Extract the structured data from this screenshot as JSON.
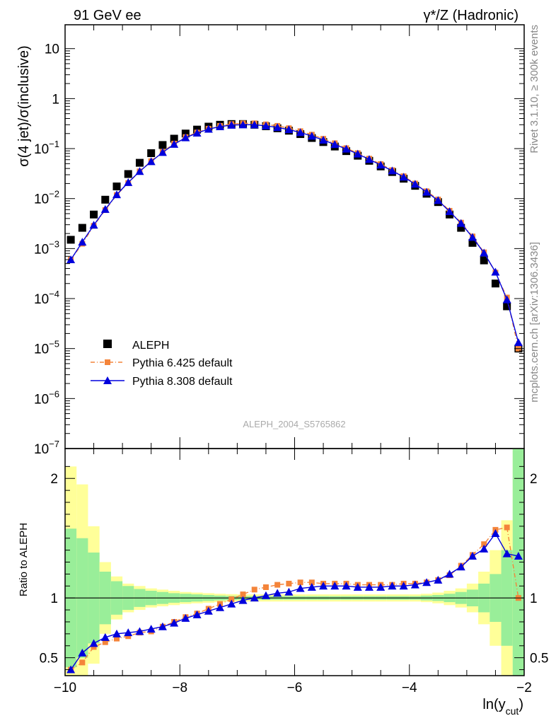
{
  "header": {
    "left": "91 GeV ee",
    "right": "γ*/Z (Hadronic)"
  },
  "side_labels": {
    "rivet": "Rivet 3.1.10, ≥ 300k events",
    "mcplots": "mcplots.cern.ch [arXiv:1306.3436]"
  },
  "analysis_label": "ALEPH_2004_S5765862",
  "colors": {
    "aleph": "#000000",
    "py6": "#f4843a",
    "py8": "#0000dd",
    "band_inner": "#99ee99",
    "band_outer": "#ffff99"
  },
  "chart_data": [
    {
      "type": "scatter",
      "ylabel": "σ(4 jet)/σ(inclusive)",
      "yscale": "log",
      "ylim": [
        1e-07,
        30
      ],
      "xlim": [
        -10.0,
        -2.0
      ],
      "yticks": [
        {
          "v": 1e-07,
          "base": "10",
          "exp": "−7"
        },
        {
          "v": 1e-06,
          "base": "10",
          "exp": "−6"
        },
        {
          "v": 1e-05,
          "base": "10",
          "exp": "−5"
        },
        {
          "v": 0.0001,
          "base": "10",
          "exp": "−4"
        },
        {
          "v": 0.001,
          "base": "10",
          "exp": "−3"
        },
        {
          "v": 0.01,
          "base": "10",
          "exp": "−2"
        },
        {
          "v": 0.1,
          "base": "10",
          "exp": "−1"
        },
        {
          "v": 1,
          "base": "1",
          "exp": ""
        },
        {
          "v": 10,
          "base": "10",
          "exp": ""
        }
      ],
      "x": [
        -9.9,
        -9.7,
        -9.5,
        -9.3,
        -9.1,
        -8.9,
        -8.7,
        -8.5,
        -8.3,
        -8.1,
        -7.9,
        -7.7,
        -7.5,
        -7.3,
        -7.1,
        -6.9,
        -6.7,
        -6.5,
        -6.3,
        -6.1,
        -5.9,
        -5.7,
        -5.5,
        -5.3,
        -5.1,
        -4.9,
        -4.7,
        -4.5,
        -4.3,
        -4.1,
        -3.9,
        -3.7,
        -3.5,
        -3.3,
        -3.1,
        -2.9,
        -2.7,
        -2.5,
        -2.3,
        -2.1
      ],
      "legend": [
        {
          "label": "ALEPH",
          "series": "aleph"
        },
        {
          "label": "Pythia 6.425 default",
          "series": "py6"
        },
        {
          "label": "Pythia 8.308 default",
          "series": "py8"
        }
      ],
      "series": [
        {
          "name": "ALEPH",
          "key": "aleph",
          "values": [
            0.0015,
            0.0026,
            0.0048,
            0.0095,
            0.0175,
            0.031,
            0.052,
            0.081,
            0.118,
            0.158,
            0.2,
            0.24,
            0.275,
            0.3,
            0.31,
            0.31,
            0.3,
            0.28,
            0.255,
            0.228,
            0.195,
            0.163,
            0.135,
            0.11,
            0.089,
            0.072,
            0.057,
            0.044,
            0.034,
            0.025,
            0.018,
            0.0125,
            0.0085,
            0.0048,
            0.0026,
            0.0013,
            0.00058,
            0.0002,
            7e-05,
            1e-05
          ]
        },
        {
          "name": "Pythia 6.425 default",
          "key": "py6",
          "values": [
            0.0006,
            0.00125,
            0.00285,
            0.0059,
            0.0118,
            0.0205,
            0.035,
            0.056,
            0.086,
            0.126,
            0.17,
            0.21,
            0.25,
            0.285,
            0.31,
            0.32,
            0.32,
            0.305,
            0.285,
            0.256,
            0.223,
            0.19,
            0.157,
            0.128,
            0.102,
            0.081,
            0.063,
            0.049,
            0.037,
            0.028,
            0.02,
            0.014,
            0.0096,
            0.0057,
            0.0033,
            0.00175,
            0.00084,
            0.00033,
            0.000105,
            1e-05
          ]
        },
        {
          "name": "Pythia 8.308 default",
          "key": "py8",
          "values": [
            0.0006,
            0.00135,
            0.00295,
            0.0061,
            0.012,
            0.021,
            0.035,
            0.055,
            0.084,
            0.122,
            0.165,
            0.205,
            0.245,
            0.275,
            0.295,
            0.3,
            0.3,
            0.285,
            0.265,
            0.24,
            0.21,
            0.178,
            0.148,
            0.121,
            0.098,
            0.078,
            0.061,
            0.047,
            0.036,
            0.027,
            0.0195,
            0.0135,
            0.0092,
            0.0055,
            0.0032,
            0.00168,
            0.00082,
            0.00034,
            9.5e-05,
            1.32e-05
          ]
        }
      ]
    },
    {
      "type": "line",
      "ylabel": "Ratio to ALEPH",
      "xlabel_base": "ln(y",
      "xlabel_sub": "cut",
      "xlabel_end": ")",
      "ylim": [
        0.35,
        2.25
      ],
      "xlim": [
        -10.0,
        -2.0
      ],
      "yticks": [
        "0.5",
        "1",
        "2"
      ],
      "xticks": [
        "−10",
        "−8",
        "−6",
        "−4",
        "−2"
      ],
      "x": [
        -9.9,
        -9.7,
        -9.5,
        -9.3,
        -9.1,
        -8.9,
        -8.7,
        -8.5,
        -8.3,
        -8.1,
        -7.9,
        -7.7,
        -7.5,
        -7.3,
        -7.1,
        -6.9,
        -6.7,
        -6.5,
        -6.3,
        -6.1,
        -5.9,
        -5.7,
        -5.5,
        -5.3,
        -5.1,
        -4.9,
        -4.7,
        -4.5,
        -4.3,
        -4.1,
        -3.9,
        -3.7,
        -3.5,
        -3.3,
        -3.1,
        -2.9,
        -2.7,
        -2.5,
        -2.3,
        -2.1
      ],
      "band_inner": [
        0.42,
        0.5,
        0.62,
        0.78,
        0.86,
        0.9,
        0.925,
        0.94,
        0.95,
        0.96,
        0.965,
        0.97,
        0.975,
        0.98,
        0.983,
        0.985,
        0.985,
        0.985,
        0.985,
        0.985,
        0.985,
        0.985,
        0.985,
        0.985,
        0.985,
        0.985,
        0.985,
        0.985,
        0.985,
        0.985,
        0.985,
        0.98,
        0.975,
        0.965,
        0.95,
        0.93,
        0.88,
        0.8,
        0.6,
        0.35
      ],
      "band_inner_hi": [
        1.58,
        1.5,
        1.38,
        1.22,
        1.14,
        1.1,
        1.075,
        1.06,
        1.05,
        1.04,
        1.035,
        1.03,
        1.025,
        1.02,
        1.017,
        1.015,
        1.015,
        1.015,
        1.015,
        1.015,
        1.015,
        1.015,
        1.015,
        1.015,
        1.015,
        1.015,
        1.015,
        1.015,
        1.015,
        1.015,
        1.015,
        1.02,
        1.025,
        1.035,
        1.05,
        1.07,
        1.12,
        1.2,
        1.4,
        2.25
      ],
      "band_outer_lo": [
        0.35,
        0.35,
        0.45,
        0.7,
        0.82,
        0.88,
        0.9,
        0.92,
        0.93,
        0.94,
        0.95,
        0.955,
        0.96,
        0.965,
        0.968,
        0.97,
        0.97,
        0.97,
        0.97,
        0.97,
        0.97,
        0.97,
        0.97,
        0.97,
        0.97,
        0.97,
        0.97,
        0.97,
        0.97,
        0.97,
        0.97,
        0.965,
        0.955,
        0.94,
        0.92,
        0.88,
        0.78,
        0.6,
        0.35,
        0.35
      ],
      "band_outer_hi": [
        2.1,
        1.95,
        1.6,
        1.3,
        1.18,
        1.12,
        1.1,
        1.08,
        1.07,
        1.06,
        1.05,
        1.045,
        1.04,
        1.035,
        1.032,
        1.03,
        1.03,
        1.03,
        1.03,
        1.03,
        1.03,
        1.03,
        1.03,
        1.03,
        1.03,
        1.03,
        1.03,
        1.03,
        1.03,
        1.03,
        1.03,
        1.035,
        1.045,
        1.06,
        1.08,
        1.12,
        1.22,
        1.4,
        1.65,
        2.25
      ],
      "series": [
        {
          "name": "Pythia 6.425 default",
          "key": "py6",
          "values": [
            0.4,
            0.46,
            0.59,
            0.63,
            0.66,
            0.68,
            0.71,
            0.72,
            0.76,
            0.8,
            0.84,
            0.87,
            0.91,
            0.95,
            0.99,
            1.03,
            1.07,
            1.09,
            1.11,
            1.12,
            1.13,
            1.13,
            1.12,
            1.12,
            1.12,
            1.11,
            1.11,
            1.11,
            1.11,
            1.12,
            1.12,
            1.13,
            1.15,
            1.19,
            1.27,
            1.36,
            1.45,
            1.57,
            1.59,
            1.0
          ]
        },
        {
          "name": "Pythia 8.308 default",
          "key": "py8",
          "values": [
            0.4,
            0.54,
            0.62,
            0.67,
            0.7,
            0.71,
            0.72,
            0.74,
            0.76,
            0.79,
            0.83,
            0.86,
            0.89,
            0.92,
            0.95,
            0.98,
            1.0,
            1.02,
            1.04,
            1.05,
            1.08,
            1.09,
            1.1,
            1.1,
            1.1,
            1.09,
            1.09,
            1.09,
            1.1,
            1.1,
            1.11,
            1.13,
            1.15,
            1.2,
            1.26,
            1.35,
            1.41,
            1.54,
            1.37,
            1.35
          ]
        }
      ]
    }
  ]
}
